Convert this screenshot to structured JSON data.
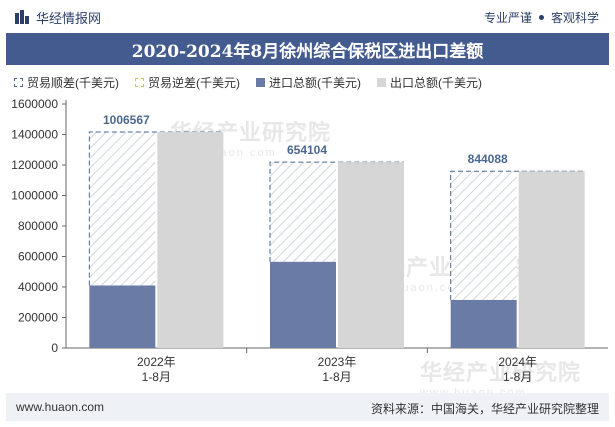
{
  "header": {
    "brand": "华经情报网",
    "slogan_left": "专业严谨",
    "slogan_right": "客观科学"
  },
  "title": "2020-2024年8月徐州综合保税区进出口差额",
  "legend": [
    {
      "key": "surplus",
      "label": "贸易顺差(千美元)"
    },
    {
      "key": "deficit",
      "label": "贸易逆差(千美元)"
    },
    {
      "key": "import",
      "label": "进口总额(千美元)"
    },
    {
      "key": "export",
      "label": "出口总额(千美元)"
    }
  ],
  "footer": {
    "website": "www.huaon.com",
    "source": "资料来源：中国海关，华经产业研究院整理"
  },
  "watermark": {
    "cn": "华经产业研究院",
    "en": "www.huaon.com"
  },
  "colors": {
    "import": "#6a7ca6",
    "export": "#d6d6d6",
    "surplus_stroke": "#4a6890",
    "surplus_hatch": "#cfd6de",
    "label": "#4a6890"
  },
  "chart_data": {
    "type": "bar",
    "categories": [
      "2022年\n1-8月",
      "2023年\n1-8月",
      "2024年\n1-8月"
    ],
    "series": [
      {
        "name": "进口总额(千美元)",
        "values": [
          410000,
          565000,
          315000
        ]
      },
      {
        "name": "出口总额(千美元)",
        "values": [
          1416567,
          1219104,
          1159088
        ]
      },
      {
        "name": "贸易顺差(千美元)",
        "values": [
          1006567,
          654104,
          844088
        ]
      }
    ],
    "surplus_labels": [
      "1006567",
      "654104",
      "844088"
    ],
    "ylim": [
      0,
      1600000
    ],
    "yticks": [
      "0",
      "200000",
      "400000",
      "600000",
      "800000",
      "1000000",
      "1200000",
      "1400000",
      "1600000"
    ],
    "grid": false,
    "legend_position": "top-left"
  }
}
